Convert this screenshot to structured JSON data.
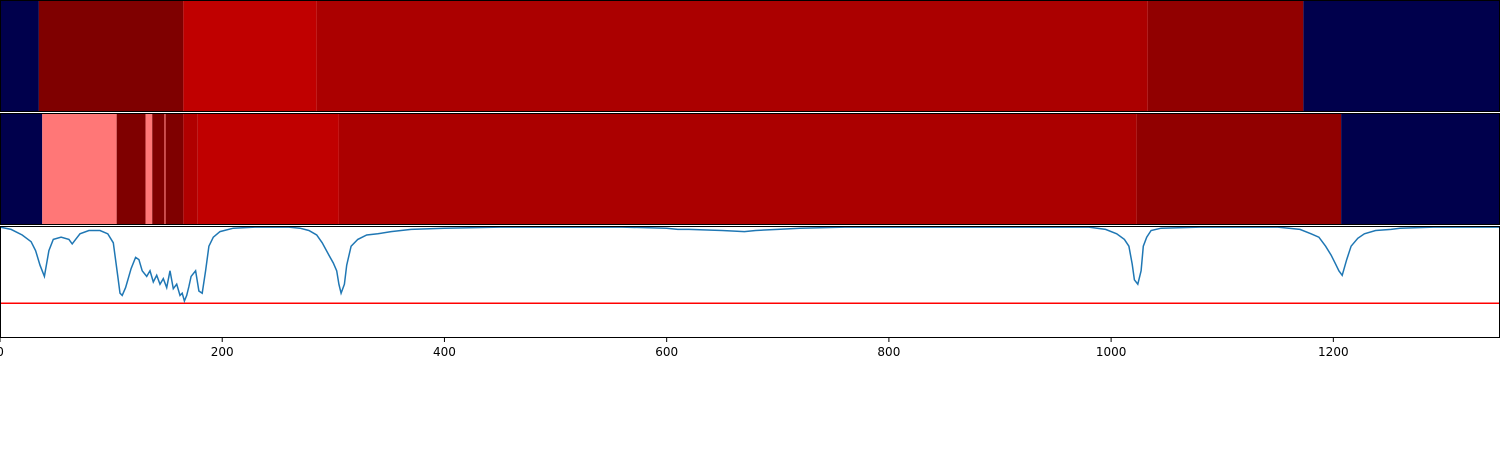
{
  "chart_data": {
    "type": "heatmap",
    "xlim": [
      0,
      1350
    ],
    "x_ticks": [
      {
        "value": 0,
        "label": "0"
      },
      {
        "value": 200,
        "label": "200"
      },
      {
        "value": 400,
        "label": "400"
      },
      {
        "value": 600,
        "label": "600"
      },
      {
        "value": 800,
        "label": "800"
      },
      {
        "value": 1000,
        "label": "1000"
      },
      {
        "value": 1200,
        "label": "1200"
      }
    ],
    "tracks": [
      {
        "segments": [
          {
            "start": 0,
            "end": 35,
            "color": "#00004c"
          },
          {
            "start": 35,
            "end": 165,
            "color": "#7f0000"
          },
          {
            "start": 165,
            "end": 285,
            "color": "#c00000"
          },
          {
            "start": 285,
            "end": 1033,
            "color": "#ab0000"
          },
          {
            "start": 1033,
            "end": 1173,
            "color": "#910000"
          },
          {
            "start": 1173,
            "end": 1350,
            "color": "#00004c"
          }
        ]
      },
      {
        "segments": [
          {
            "start": 0,
            "end": 38,
            "color": "#00004c"
          },
          {
            "start": 38,
            "end": 105,
            "color": "#ff7777"
          },
          {
            "start": 105,
            "end": 131,
            "color": "#7f0000"
          },
          {
            "start": 131,
            "end": 137,
            "color": "#ff7777"
          },
          {
            "start": 137,
            "end": 148,
            "color": "#7f0000"
          },
          {
            "start": 148,
            "end": 149,
            "color": "#ff7777"
          },
          {
            "start": 149,
            "end": 165,
            "color": "#7f0000"
          },
          {
            "start": 165,
            "end": 178,
            "color": "#b00000"
          },
          {
            "start": 178,
            "end": 305,
            "color": "#c00000"
          },
          {
            "start": 305,
            "end": 1023,
            "color": "#ab0000"
          },
          {
            "start": 1023,
            "end": 1207,
            "color": "#910000"
          },
          {
            "start": 1207,
            "end": 1350,
            "color": "#00004c"
          }
        ]
      }
    ],
    "line_panel": {
      "ylim": [
        0,
        1
      ],
      "line_color": "#1f77b4",
      "threshold": 0.31,
      "threshold_color": "#ff0000",
      "series": [
        [
          0,
          0.99
        ],
        [
          10,
          0.97
        ],
        [
          20,
          0.92
        ],
        [
          28,
          0.86
        ],
        [
          32,
          0.78
        ],
        [
          36,
          0.65
        ],
        [
          40,
          0.55
        ],
        [
          44,
          0.78
        ],
        [
          48,
          0.88
        ],
        [
          55,
          0.9
        ],
        [
          62,
          0.88
        ],
        [
          65,
          0.84
        ],
        [
          68,
          0.88
        ],
        [
          72,
          0.93
        ],
        [
          80,
          0.96
        ],
        [
          90,
          0.96
        ],
        [
          97,
          0.93
        ],
        [
          102,
          0.85
        ],
        [
          106,
          0.55
        ],
        [
          108,
          0.4
        ],
        [
          110,
          0.38
        ],
        [
          113,
          0.45
        ],
        [
          118,
          0.62
        ],
        [
          122,
          0.72
        ],
        [
          125,
          0.7
        ],
        [
          128,
          0.6
        ],
        [
          132,
          0.55
        ],
        [
          135,
          0.6
        ],
        [
          138,
          0.5
        ],
        [
          141,
          0.56
        ],
        [
          144,
          0.48
        ],
        [
          147,
          0.53
        ],
        [
          150,
          0.45
        ],
        [
          153,
          0.6
        ],
        [
          156,
          0.44
        ],
        [
          159,
          0.48
        ],
        [
          162,
          0.38
        ],
        [
          164,
          0.4
        ],
        [
          166,
          0.33
        ],
        [
          168,
          0.38
        ],
        [
          170,
          0.46
        ],
        [
          172,
          0.55
        ],
        [
          176,
          0.6
        ],
        [
          179,
          0.42
        ],
        [
          182,
          0.4
        ],
        [
          185,
          0.6
        ],
        [
          188,
          0.82
        ],
        [
          192,
          0.9
        ],
        [
          198,
          0.95
        ],
        [
          210,
          0.98
        ],
        [
          230,
          0.99
        ],
        [
          260,
          0.99
        ],
        [
          270,
          0.98
        ],
        [
          278,
          0.96
        ],
        [
          285,
          0.92
        ],
        [
          290,
          0.85
        ],
        [
          296,
          0.74
        ],
        [
          300,
          0.67
        ],
        [
          303,
          0.6
        ],
        [
          305,
          0.48
        ],
        [
          307,
          0.4
        ],
        [
          310,
          0.48
        ],
        [
          312,
          0.65
        ],
        [
          316,
          0.82
        ],
        [
          322,
          0.88
        ],
        [
          330,
          0.92
        ],
        [
          340,
          0.93
        ],
        [
          352,
          0.95
        ],
        [
          370,
          0.97
        ],
        [
          400,
          0.98
        ],
        [
          450,
          0.99
        ],
        [
          500,
          0.99
        ],
        [
          560,
          0.99
        ],
        [
          600,
          0.98
        ],
        [
          610,
          0.97
        ],
        [
          620,
          0.97
        ],
        [
          650,
          0.96
        ],
        [
          670,
          0.95
        ],
        [
          680,
          0.96
        ],
        [
          700,
          0.97
        ],
        [
          720,
          0.98
        ],
        [
          760,
          0.99
        ],
        [
          800,
          0.99
        ],
        [
          900,
          0.99
        ],
        [
          980,
          0.99
        ],
        [
          995,
          0.97
        ],
        [
          1005,
          0.93
        ],
        [
          1012,
          0.88
        ],
        [
          1016,
          0.82
        ],
        [
          1019,
          0.66
        ],
        [
          1021,
          0.52
        ],
        [
          1024,
          0.48
        ],
        [
          1027,
          0.6
        ],
        [
          1029,
          0.82
        ],
        [
          1032,
          0.9
        ],
        [
          1036,
          0.96
        ],
        [
          1045,
          0.98
        ],
        [
          1080,
          0.99
        ],
        [
          1150,
          0.99
        ],
        [
          1160,
          0.98
        ],
        [
          1170,
          0.97
        ],
        [
          1180,
          0.93
        ],
        [
          1187,
          0.9
        ],
        [
          1193,
          0.82
        ],
        [
          1198,
          0.74
        ],
        [
          1202,
          0.66
        ],
        [
          1205,
          0.6
        ],
        [
          1208,
          0.56
        ],
        [
          1212,
          0.7
        ],
        [
          1216,
          0.82
        ],
        [
          1222,
          0.89
        ],
        [
          1228,
          0.93
        ],
        [
          1238,
          0.96
        ],
        [
          1252,
          0.97
        ],
        [
          1260,
          0.98
        ],
        [
          1290,
          0.99
        ],
        [
          1350,
          0.99
        ]
      ]
    }
  }
}
